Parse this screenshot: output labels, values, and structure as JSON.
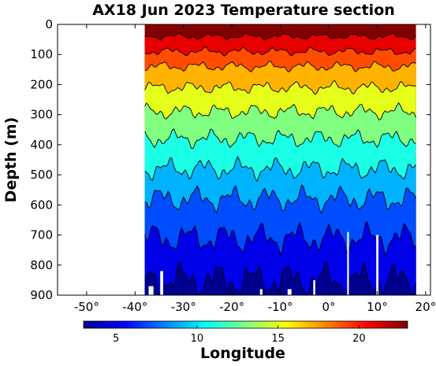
{
  "chart_data": {
    "type": "heatmap",
    "title": "AX18 Jun 2023 Temperature section",
    "xlabel": "Longitude",
    "ylabel": "Depth (m)",
    "xlim": [
      -56,
      21
    ],
    "ylim": [
      0,
      900
    ],
    "y_reversed": true,
    "x_ticks": [
      -50,
      -40,
      -30,
      -20,
      -10,
      0,
      10,
      20
    ],
    "x_tick_labels": [
      "-50°",
      "-40°",
      "-30°",
      "-20°",
      "-10°",
      "0°",
      "10°",
      "20°"
    ],
    "y_ticks": [
      0,
      100,
      200,
      300,
      400,
      500,
      600,
      700,
      800,
      900
    ],
    "y_tick_labels": [
      "0",
      "100",
      "200",
      "300",
      "400",
      "500",
      "600",
      "700",
      "800",
      "900"
    ],
    "data_x_range": [
      -38,
      18
    ],
    "colorbar": {
      "colormap": "jet",
      "range": [
        3,
        23
      ],
      "ticks": [
        5,
        10,
        15,
        20
      ],
      "tick_labels": [
        "5",
        "10",
        "15",
        "20"
      ]
    },
    "isotherms": [
      {
        "temperature": 22,
        "mean_depth": 40
      },
      {
        "temperature": 20,
        "mean_depth": 90
      },
      {
        "temperature": 18,
        "mean_depth": 140
      },
      {
        "temperature": 16,
        "mean_depth": 210
      },
      {
        "temperature": 14,
        "mean_depth": 290
      },
      {
        "temperature": 12,
        "mean_depth": 380
      },
      {
        "temperature": 10,
        "mean_depth": 480
      },
      {
        "temperature": 8,
        "mean_depth": 580
      },
      {
        "temperature": 6,
        "mean_depth": 710
      },
      {
        "temperature": 4,
        "mean_depth": 850
      }
    ]
  }
}
